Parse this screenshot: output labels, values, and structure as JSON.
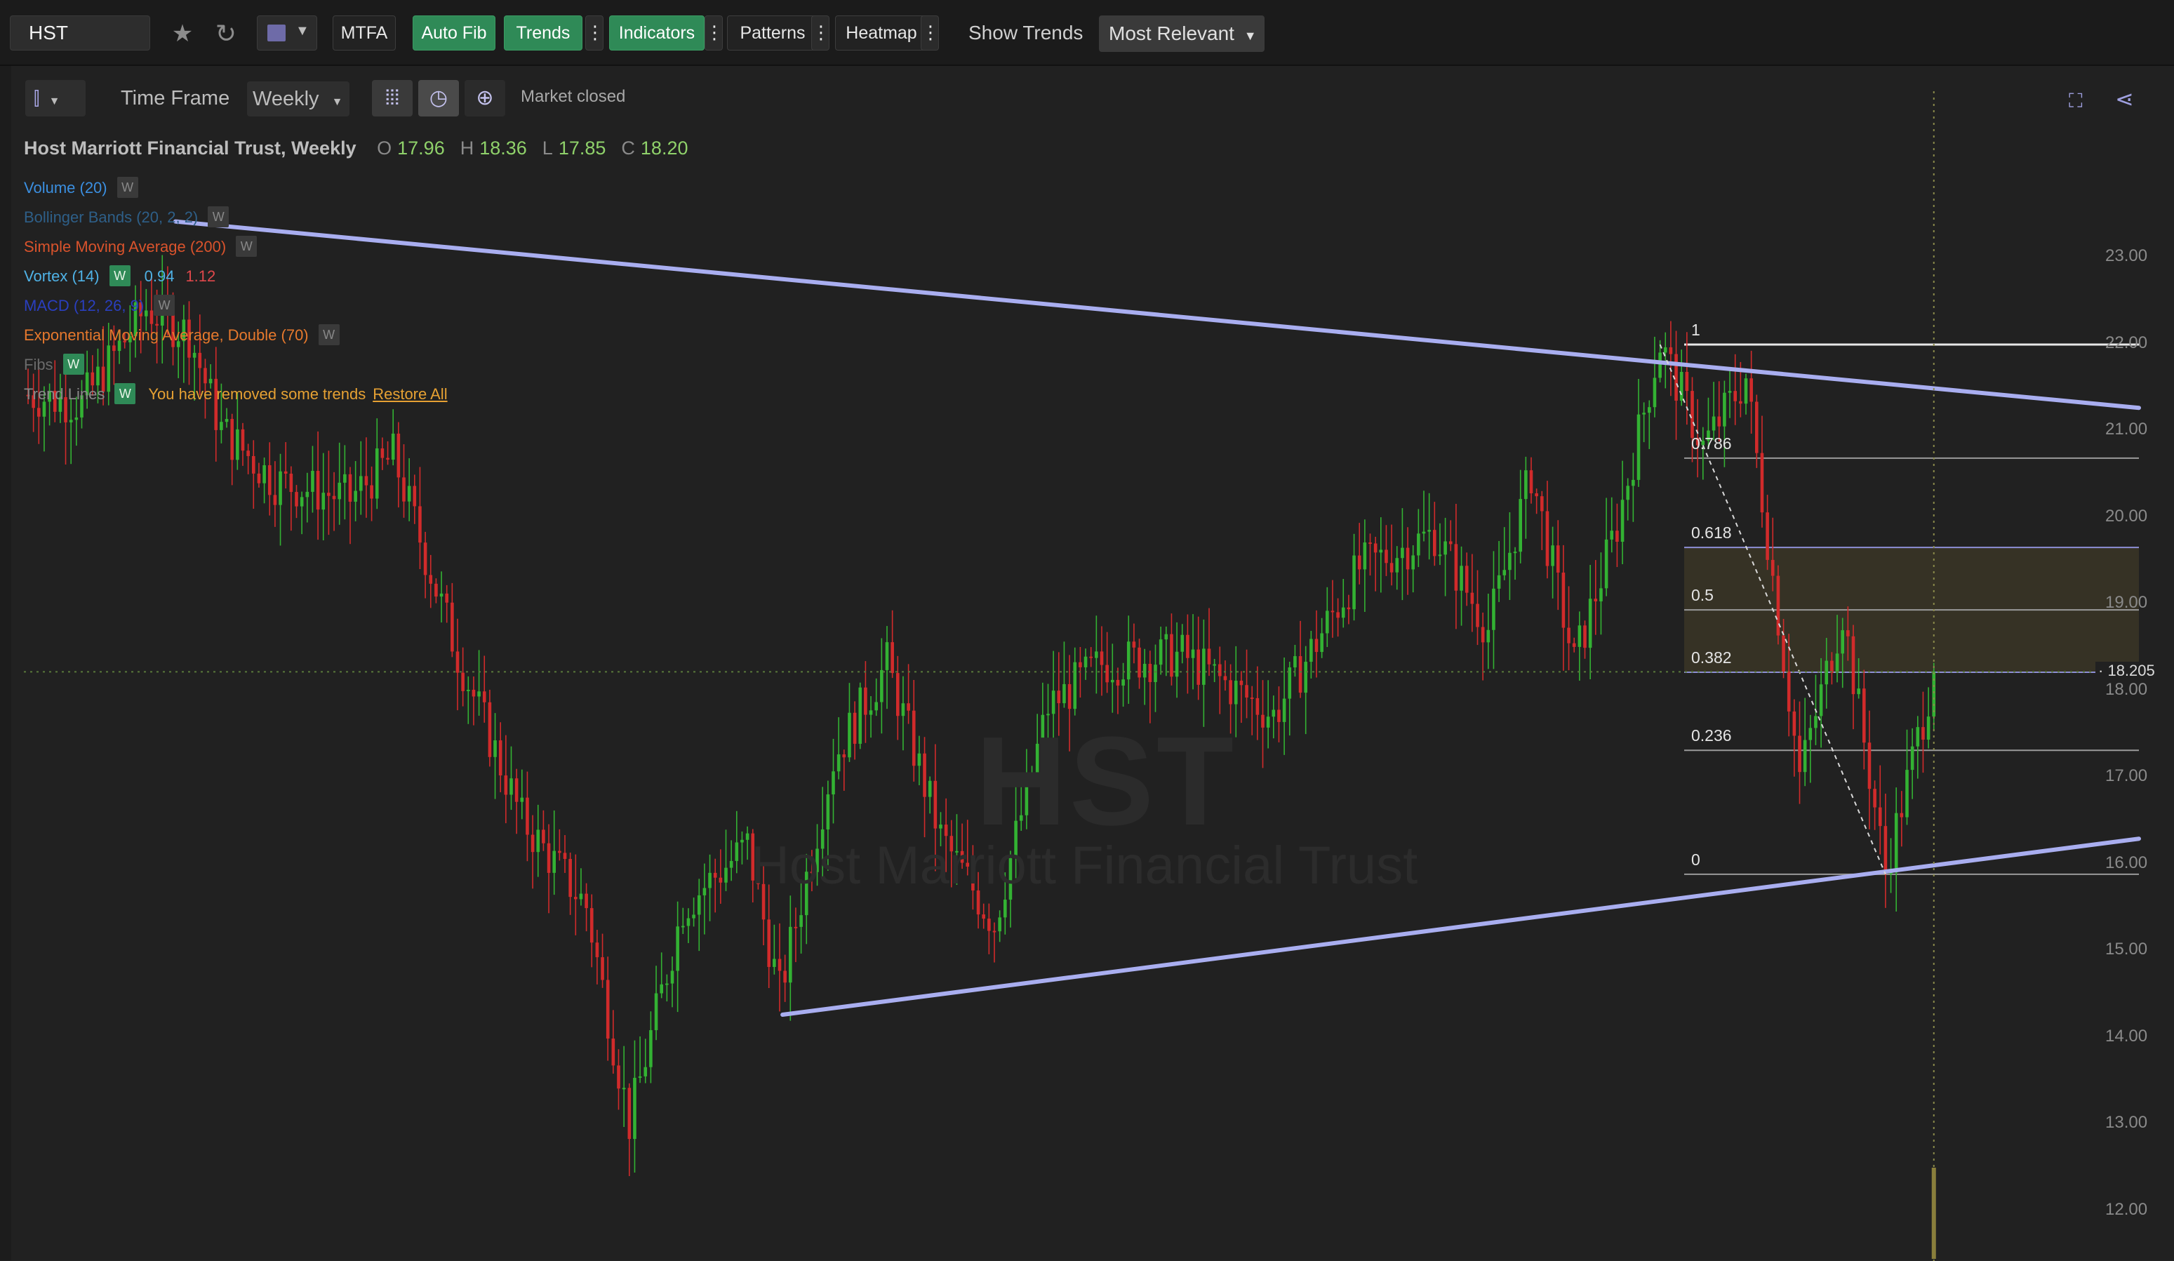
{
  "toolbar": {
    "symbol": "HST",
    "mtfa_label": "MTFA",
    "auto_fib_label": "Auto Fib",
    "trends_label": "Trends",
    "indicators_label": "Indicators",
    "patterns_label": "Patterns",
    "heatmap_label": "Heatmap",
    "show_trends_label": "Show Trends",
    "most_relevant_label": "Most Relevant",
    "kebab_glyph": "⋮",
    "icons": [
      "star-icon",
      "refresh-icon",
      "color-swatch-icon",
      "chevron-down-icon"
    ]
  },
  "subtoolbar": {
    "time_frame_label": "Time Frame",
    "time_frame_value": "Weekly",
    "market_status": "Market closed",
    "icons": [
      "candlestick-icon",
      "waveform-icon",
      "clock-icon",
      "crosshair-icon",
      "expand-icon",
      "share-icon"
    ]
  },
  "legend": {
    "title": "Host Marriott Financial Trust, Weekly",
    "ohlc": [
      {
        "label": "O",
        "value": "17.96"
      },
      {
        "label": "H",
        "value": "18.36"
      },
      {
        "label": "L",
        "value": "17.85"
      },
      {
        "label": "C",
        "value": "18.20"
      }
    ],
    "indicators": [
      {
        "name": "Volume (20)",
        "color": "#3b8fe0",
        "w": "W",
        "w_green": false,
        "v1": "",
        "v2": ""
      },
      {
        "name": "Bollinger Bands (20, 2, 2)",
        "color": "#2e5f88",
        "w": "W",
        "w_green": false,
        "v1": "",
        "v2": ""
      },
      {
        "name": "Simple Moving Average (200)",
        "color": "#d9532c",
        "w": "W",
        "w_green": false,
        "v1": "",
        "v2": ""
      },
      {
        "name": "Vortex (14)",
        "color": "#4fb2e6",
        "w": "W",
        "w_green": true,
        "v1": "0.94",
        "v2": "1.12"
      },
      {
        "name": "MACD (12, 26, 9)",
        "color": "#2a3fbf",
        "w": "W",
        "w_green": false,
        "v1": "",
        "v2": ""
      },
      {
        "name": "Exponential Moving Average, Double (70)",
        "color": "#e7792d",
        "w": "W",
        "w_green": false,
        "v1": "",
        "v2": ""
      },
      {
        "name": "Fibs",
        "color": "#6b6b6b",
        "w": "W",
        "w_green": true,
        "v1": "",
        "v2": ""
      },
      {
        "name": "Trend Lines",
        "color": "#8a8a8a",
        "w": "W",
        "w_green": true,
        "v1": "",
        "v2": ""
      }
    ],
    "trends_warning": "You have removed some trends",
    "restore_all": "Restore All"
  },
  "price_axis": {
    "ticks": [
      "23.00",
      "22.00",
      "21.00",
      "20.00",
      "19.00",
      "18.00",
      "17.00",
      "16.00",
      "15.00",
      "14.00",
      "13.00",
      "12.00"
    ],
    "last_price": "18.205"
  },
  "fib_levels": [
    {
      "label": "1",
      "price": 21.98
    },
    {
      "label": "0.786",
      "price": 20.67
    },
    {
      "label": "0.618",
      "price": 19.64
    },
    {
      "label": "0.5",
      "price": 18.92
    },
    {
      "label": "0.382",
      "price": 18.2
    },
    {
      "label": "0.236",
      "price": 17.3
    },
    {
      "label": "0",
      "price": 15.87
    }
  ],
  "watermark": {
    "symbol": "HST",
    "name": "Host Marriott Financial Trust"
  },
  "colors": {
    "bull": "#33b233",
    "bear": "#d12b2b",
    "trendline": "#a9aef0",
    "fib_zone": "#3a3526",
    "accent_green": "#2f8a57",
    "vortex_v1": "#4fb2e6",
    "vortex_v2": "#e0484b"
  },
  "chart_data": {
    "type": "candlestick",
    "timeframe": "Weekly",
    "ylim": [
      11.8,
      23.6
    ],
    "last_close": 18.205,
    "anchors": [
      {
        "i": 0,
        "p": 21.4
      },
      {
        "i": 10,
        "p": 21.3
      },
      {
        "i": 22,
        "p": 22.4
      },
      {
        "i": 30,
        "p": 22.1
      },
      {
        "i": 36,
        "p": 21.0
      },
      {
        "i": 46,
        "p": 20.4
      },
      {
        "i": 60,
        "p": 20.2
      },
      {
        "i": 68,
        "p": 20.7
      },
      {
        "i": 80,
        "p": 18.4
      },
      {
        "i": 92,
        "p": 16.5
      },
      {
        "i": 104,
        "p": 15.5
      },
      {
        "i": 112,
        "p": 13.0
      },
      {
        "i": 122,
        "p": 15.5
      },
      {
        "i": 134,
        "p": 16.2
      },
      {
        "i": 140,
        "p": 14.5
      },
      {
        "i": 150,
        "p": 17.2
      },
      {
        "i": 160,
        "p": 18.3
      },
      {
        "i": 170,
        "p": 16.3
      },
      {
        "i": 180,
        "p": 15.3
      },
      {
        "i": 190,
        "p": 17.8
      },
      {
        "i": 200,
        "p": 18.3
      },
      {
        "i": 215,
        "p": 18.4
      },
      {
        "i": 232,
        "p": 17.7
      },
      {
        "i": 248,
        "p": 19.4
      },
      {
        "i": 262,
        "p": 19.8
      },
      {
        "i": 272,
        "p": 18.7
      },
      {
        "i": 280,
        "p": 20.5
      },
      {
        "i": 288,
        "p": 18.3
      },
      {
        "i": 296,
        "p": 19.9
      },
      {
        "i": 304,
        "p": 22.0
      },
      {
        "i": 312,
        "p": 20.8
      },
      {
        "i": 320,
        "p": 21.6
      },
      {
        "i": 330,
        "p": 17.0
      },
      {
        "i": 338,
        "p": 18.9
      },
      {
        "i": 346,
        "p": 15.9
      },
      {
        "i": 355,
        "p": 18.2
      }
    ],
    "trend_lines": [
      {
        "i1": 0,
        "p1": 23.4,
        "i2": 355,
        "p2": 21.25
      },
      {
        "i1": 134,
        "p1": 14.25,
        "i2": 355,
        "p2": 16.28
      }
    ],
    "fib_anchor": {
      "start_i": 304,
      "start_p": 21.98,
      "end_i": 346,
      "end_p": 15.87
    }
  }
}
